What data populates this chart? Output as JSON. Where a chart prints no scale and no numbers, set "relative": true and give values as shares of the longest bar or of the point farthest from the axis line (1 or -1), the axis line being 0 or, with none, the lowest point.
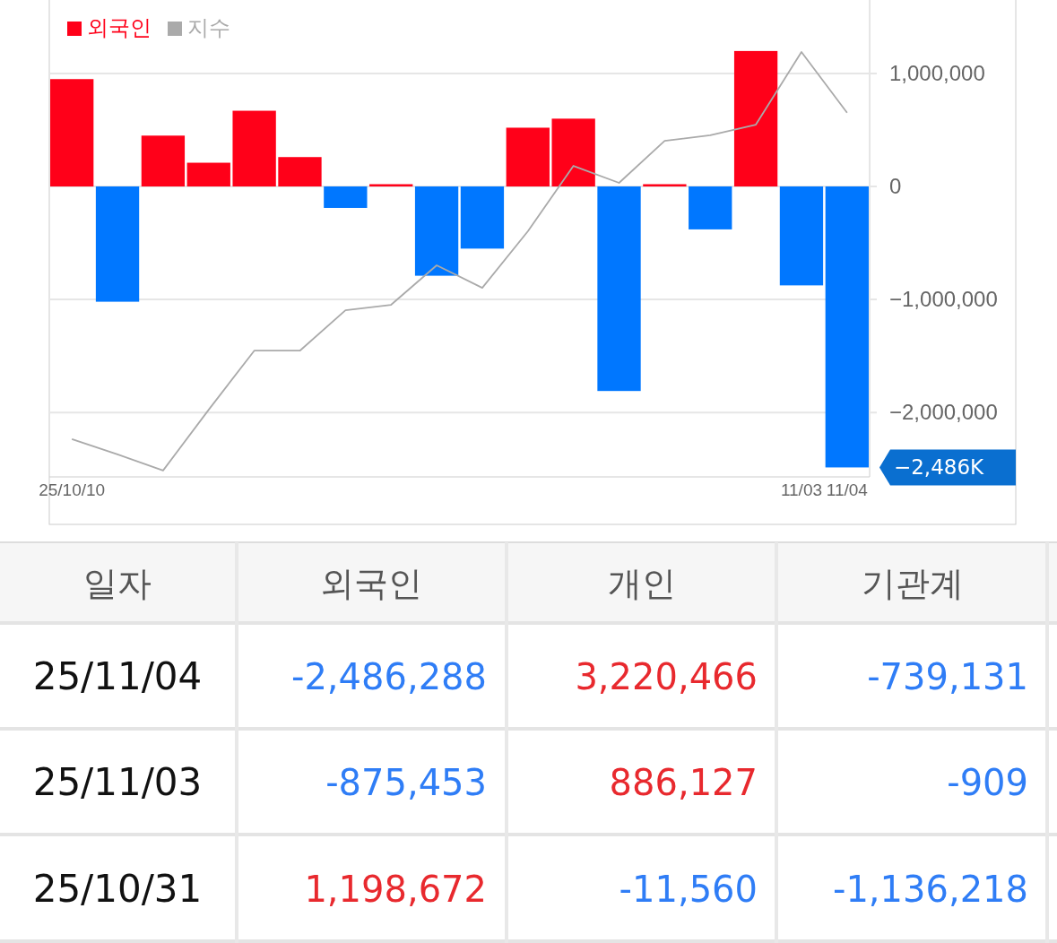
{
  "chart_data": [
    {
      "type": "bar",
      "categories": [
        "25/10/10",
        null,
        null,
        null,
        null,
        null,
        null,
        null,
        null,
        null,
        null,
        null,
        null,
        null,
        null,
        null,
        "11/03",
        "11/04"
      ],
      "series": [
        {
          "name": "외국인",
          "color": "#ff0019",
          "colors": [
            "#ff0019",
            "#0077ff",
            "#ff0019",
            "#ff0019",
            "#ff0019",
            "#ff0019",
            "#0077ff",
            "#ff0019",
            "#0077ff",
            "#0077ff",
            "#ff0019",
            "#ff0019",
            "#0077ff",
            "#ff0019",
            "#0077ff",
            "#ff0019",
            "#0077ff",
            "#0077ff"
          ],
          "values": [
            950000,
            -1020000,
            450000,
            210000,
            670000,
            260000,
            -190000,
            20000,
            -790000,
            -550000,
            520000,
            600000,
            -1810000,
            20000,
            -380000,
            1198672,
            -875453,
            -2486288
          ]
        }
      ],
      "ylim": [
        -2570000,
        1650000
      ],
      "yticks": [
        {
          "value": 1000000,
          "label": "1,000,000"
        },
        0,
        {
          "value": -1000000,
          "label": "−1,000,000"
        },
        {
          "value": -2000000,
          "label": "−2,000,000"
        }
      ],
      "grid": "y",
      "legend": "top left",
      "annotations": [
        {
          "text": "−2,486K",
          "x": "11/04",
          "y": -2486288
        }
      ]
    },
    {
      "type": "line",
      "relative": true,
      "categories": [
        null,
        null,
        null,
        null,
        null,
        null,
        null,
        null,
        null,
        null,
        null,
        null,
        null,
        null,
        null,
        null,
        null,
        null
      ],
      "series": [
        {
          "name": "지수",
          "color": "#aaaaaa",
          "values": [
            0.089,
            0.053,
            0.015,
            0.158,
            0.297,
            0.297,
            0.392,
            0.405,
            0.498,
            0.445,
            0.578,
            0.732,
            0.692,
            0.791,
            0.804,
            0.829,
            1,
            0.857
          ]
        }
      ],
      "legend": "top left"
    },
    {
      "type": "other",
      "categories": [
        "일자",
        "외국인",
        "개인",
        "기관계"
      ],
      "y_categories": [
        "25/11/04",
        "25/11/03",
        "25/10/31"
      ],
      "cell_labels": [
        [
          "-2,486,288",
          "3,220,466",
          "-739,131"
        ],
        [
          "-875,453",
          "886,127",
          "-909"
        ],
        [
          "1,198,672",
          "-11,560",
          "-1,136,218"
        ]
      ]
    }
  ]
}
